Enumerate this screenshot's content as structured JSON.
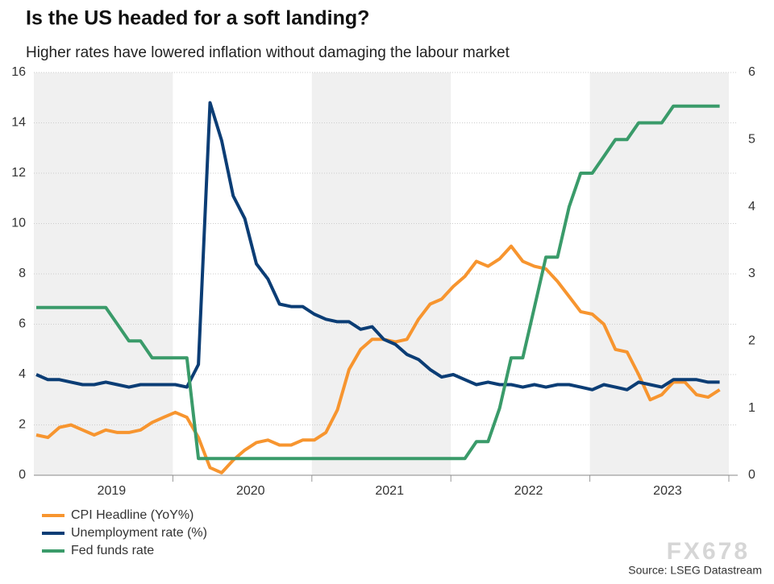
{
  "chart_data": {
    "type": "line",
    "title": "Is the US headed for a soft landing?",
    "subtitle": "Higher rates have lowered inflation without damaging the labour market",
    "source": "Source: LSEG Datastream",
    "watermark": "FX678",
    "categories": [
      null,
      null,
      null,
      null,
      null,
      null,
      "2019",
      null,
      null,
      null,
      null,
      null,
      null,
      null,
      null,
      null,
      null,
      null,
      "2020",
      null,
      null,
      null,
      null,
      null,
      null,
      null,
      null,
      null,
      null,
      null,
      "2021",
      null,
      null,
      null,
      null,
      null,
      null,
      null,
      null,
      null,
      null,
      null,
      "2022",
      null,
      null,
      null,
      null,
      null,
      null,
      null,
      null,
      null,
      null,
      null,
      "2023",
      null,
      null,
      null,
      null,
      null
    ],
    "ylim": [
      0,
      16
    ],
    "yticks": [
      0,
      2,
      4,
      6,
      8,
      10,
      12,
      14,
      16
    ],
    "y2lim": [
      0,
      6
    ],
    "y2ticks": [
      0,
      1,
      2,
      3,
      4,
      5,
      6
    ],
    "grid": true,
    "legend": "bottom-left",
    "series": [
      {
        "name": "CPI Headline (YoY%)",
        "color": "#f7952f",
        "values": [
          1.6,
          1.5,
          1.9,
          2.0,
          1.8,
          1.6,
          1.8,
          1.7,
          1.7,
          1.8,
          2.1,
          2.3,
          2.5,
          2.3,
          1.5,
          0.3,
          0.1,
          0.6,
          1.0,
          1.3,
          1.4,
          1.2,
          1.2,
          1.4,
          1.4,
          1.7,
          2.6,
          4.2,
          5.0,
          5.4,
          5.4,
          5.3,
          5.4,
          6.2,
          6.8,
          7.0,
          7.5,
          7.9,
          8.5,
          8.3,
          8.6,
          9.1,
          8.5,
          8.3,
          8.2,
          7.7,
          7.1,
          6.5,
          6.4,
          6.0,
          5.0,
          4.9,
          4.0,
          3.0,
          3.2,
          3.7,
          3.7,
          3.2,
          3.1,
          3.4
        ]
      },
      {
        "name": "Unemployment rate (%)",
        "color": "#0b3d75",
        "values": [
          4.0,
          3.8,
          3.8,
          3.7,
          3.6,
          3.6,
          3.7,
          3.6,
          3.5,
          3.6,
          3.6,
          3.6,
          3.6,
          3.5,
          4.4,
          14.8,
          13.3,
          11.1,
          10.2,
          8.4,
          7.8,
          6.8,
          6.7,
          6.7,
          6.4,
          6.2,
          6.1,
          6.1,
          5.8,
          5.9,
          5.4,
          5.2,
          4.8,
          4.6,
          4.2,
          3.9,
          4.0,
          3.8,
          3.6,
          3.7,
          3.6,
          3.6,
          3.5,
          3.6,
          3.5,
          3.6,
          3.6,
          3.5,
          3.4,
          3.6,
          3.5,
          3.4,
          3.7,
          3.6,
          3.5,
          3.8,
          3.8,
          3.8,
          3.7,
          3.7
        ]
      },
      {
        "name": "Fed funds rate",
        "color": "#3a9b6a",
        "axis": "y2",
        "values": [
          2.5,
          2.5,
          2.5,
          2.5,
          2.5,
          2.5,
          2.5,
          2.25,
          2.0,
          2.0,
          1.75,
          1.75,
          1.75,
          1.75,
          0.25,
          0.25,
          0.25,
          0.25,
          0.25,
          0.25,
          0.25,
          0.25,
          0.25,
          0.25,
          0.25,
          0.25,
          0.25,
          0.25,
          0.25,
          0.25,
          0.25,
          0.25,
          0.25,
          0.25,
          0.25,
          0.25,
          0.25,
          0.25,
          0.5,
          0.5,
          1.0,
          1.75,
          1.75,
          2.5,
          3.25,
          3.25,
          4.0,
          4.5,
          4.5,
          4.75,
          5.0,
          5.0,
          5.25,
          5.25,
          5.25,
          5.5,
          5.5,
          5.5,
          5.5,
          5.5
        ]
      }
    ]
  }
}
